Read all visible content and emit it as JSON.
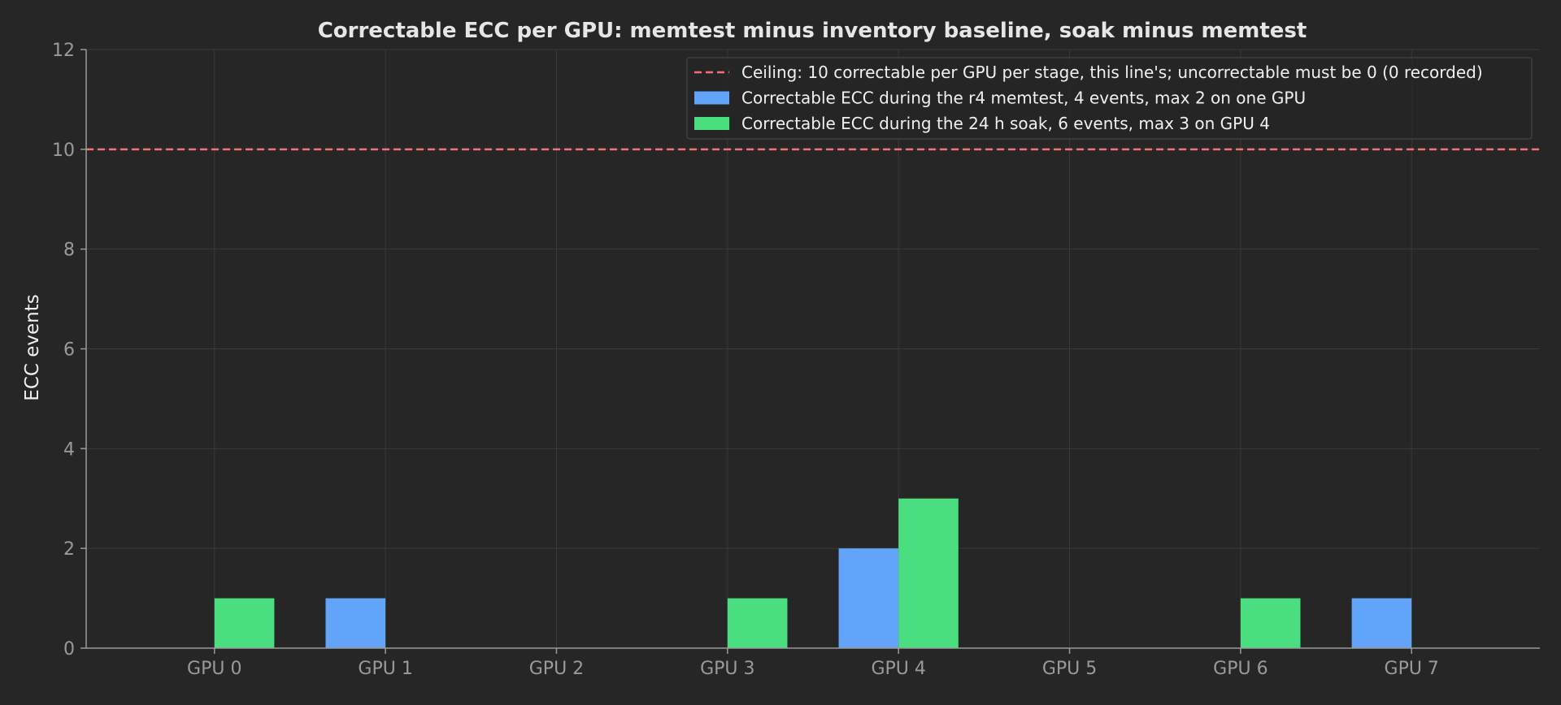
{
  "colors": {
    "background": "#262626",
    "axis": "#9a9a9a",
    "grid": "#3a3a3a",
    "tick_label": "#9a9a9a",
    "title": "#e6e6e6",
    "ylabel": "#f0f0f0",
    "legend_text": "#f0f0f0",
    "legend_bg": "#262626",
    "legend_border": "#4a4a4a",
    "memtest": "#62a4fa",
    "soak": "#4ade80",
    "ceiling": "#f87171"
  },
  "chart_data": {
    "type": "bar",
    "title": "Correctable ECC per GPU: memtest minus inventory baseline, soak minus memtest",
    "xlabel": "",
    "ylabel": "ECC events",
    "categories": [
      "GPU 0",
      "GPU 1",
      "GPU 2",
      "GPU 3",
      "GPU 4",
      "GPU 5",
      "GPU 6",
      "GPU 7"
    ],
    "series": [
      {
        "name": "Correctable ECC during the r4 memtest, 4 events, max 2 on one GPU",
        "values": [
          0,
          1,
          0,
          0,
          2,
          0,
          0,
          1
        ],
        "color": "#62a4fa"
      },
      {
        "name": "Correctable ECC during the 24 h soak, 6 events, max 3 on GPU 4",
        "values": [
          1,
          0,
          0,
          1,
          3,
          0,
          1,
          0
        ],
        "color": "#4ade80"
      }
    ],
    "reference_line": {
      "value": 10,
      "style": "dashed",
      "color": "#f87171",
      "label": "Ceiling: 10 correctable per GPU per stage, this line's; uncorrectable must be 0 (0 recorded)"
    },
    "ylim": [
      0,
      12
    ],
    "yticks": [
      0,
      2,
      4,
      6,
      8,
      10,
      12
    ],
    "grid": true,
    "legend_position": "top-right"
  }
}
